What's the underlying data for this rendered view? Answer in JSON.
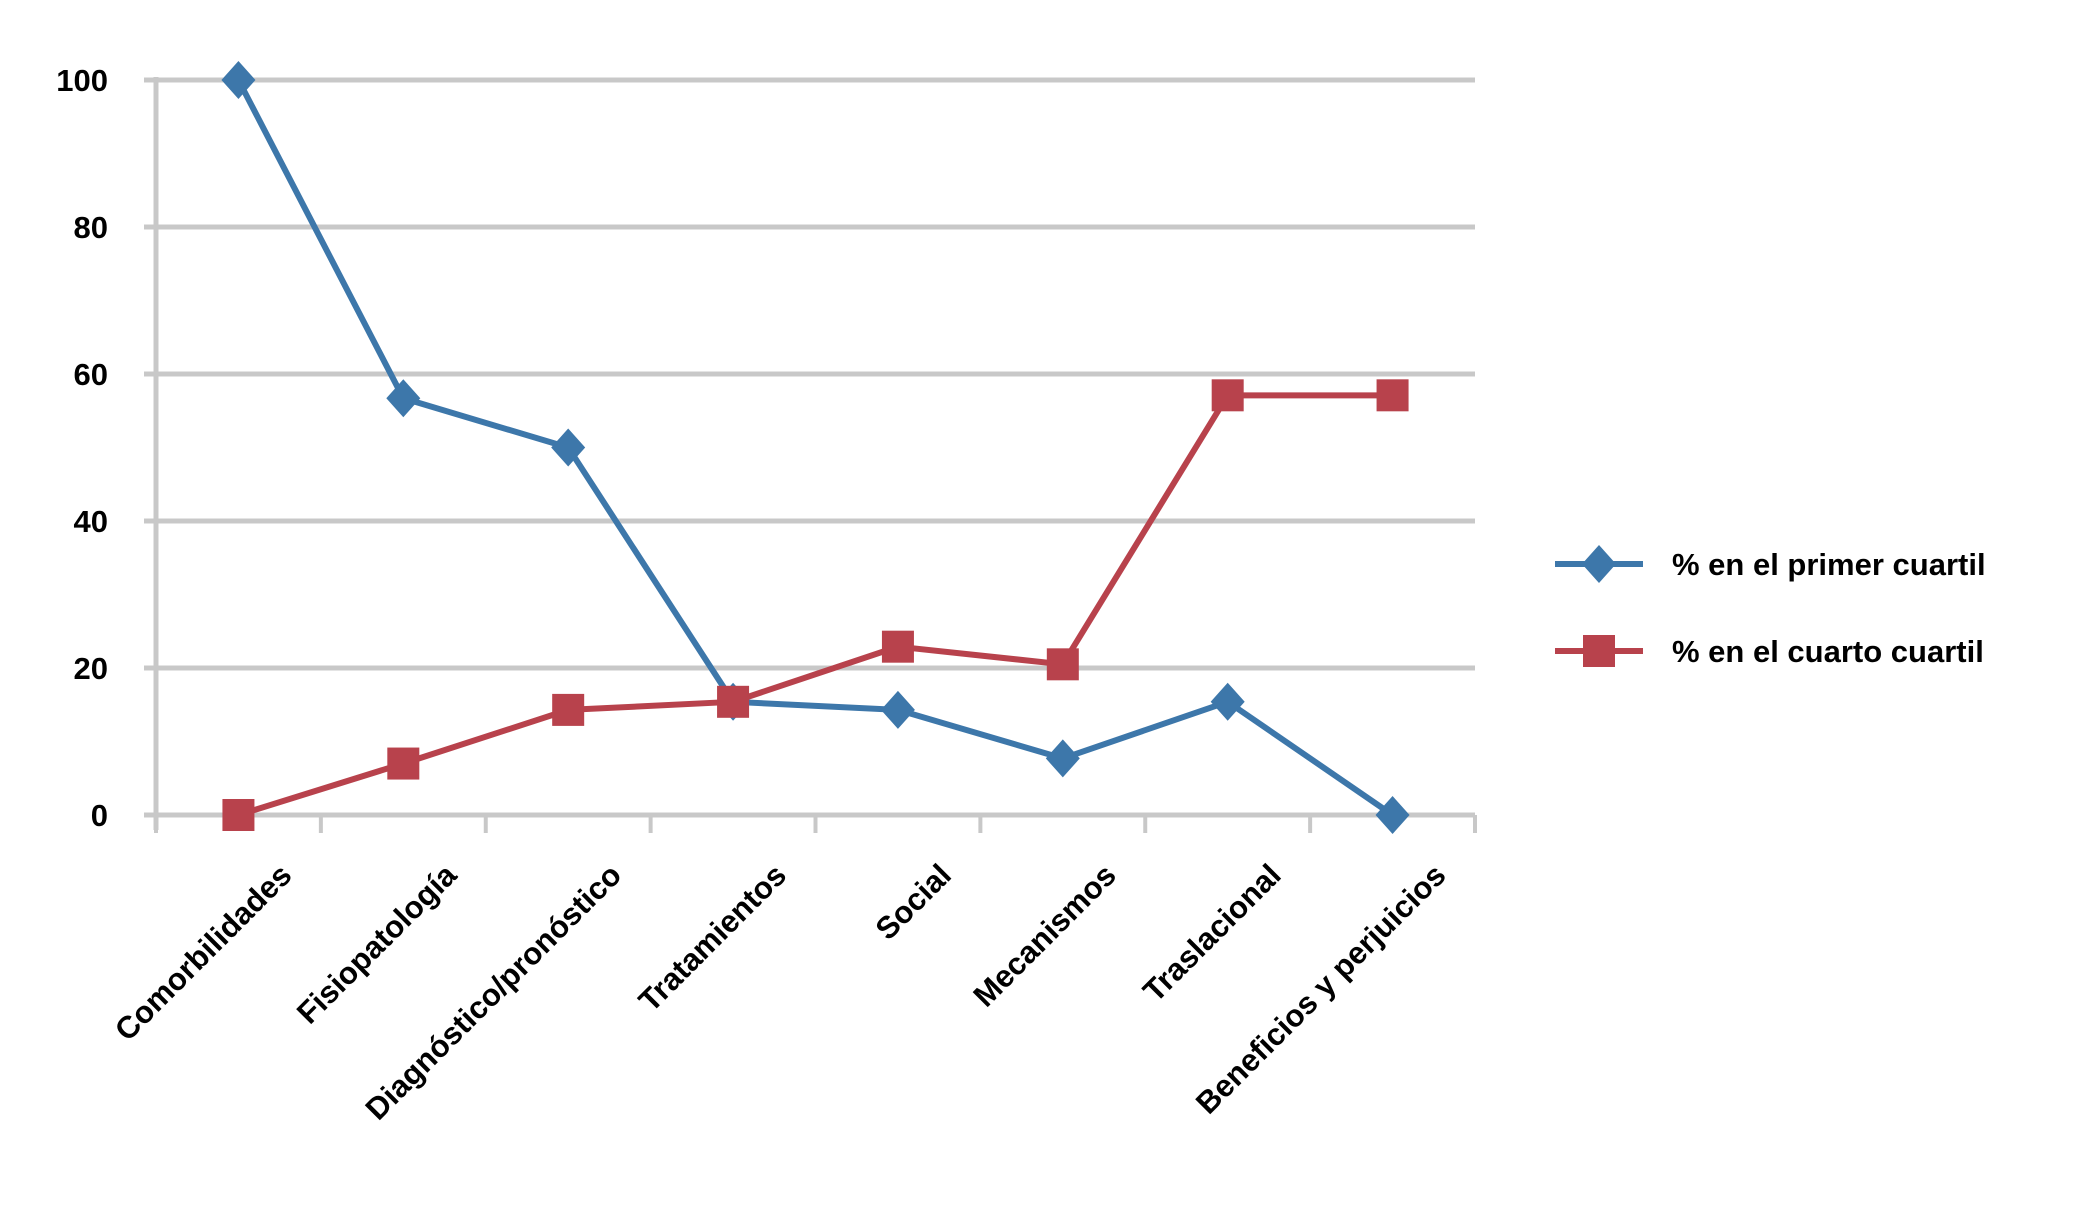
{
  "chart_data": {
    "type": "line",
    "title": "",
    "xlabel": "",
    "ylabel": "",
    "ylim": [
      0,
      100
    ],
    "yticks": [
      "0",
      "20",
      "40",
      "60",
      "80",
      "100"
    ],
    "grid": true,
    "legend_position": "right",
    "categories": [
      "Comorbilidades",
      "Fisiopatología",
      "Diagnóstico/pronóstico",
      "Tratamientos",
      "Social",
      "Mecanismos",
      "Traslacional",
      "Beneficios y perjuicios"
    ],
    "series": [
      {
        "name": "% en el primer cuartil",
        "color": "#3d77aa",
        "marker": "diamond",
        "values": [
          100,
          56.7,
          50,
          15.4,
          14.3,
          7.7,
          15.4,
          0
        ]
      },
      {
        "name": "% en el cuarto cuartil",
        "color": "#b8424c",
        "marker": "square",
        "values": [
          0,
          7,
          14.3,
          15.4,
          22.9,
          20.5,
          57.1,
          57.1
        ]
      }
    ]
  }
}
